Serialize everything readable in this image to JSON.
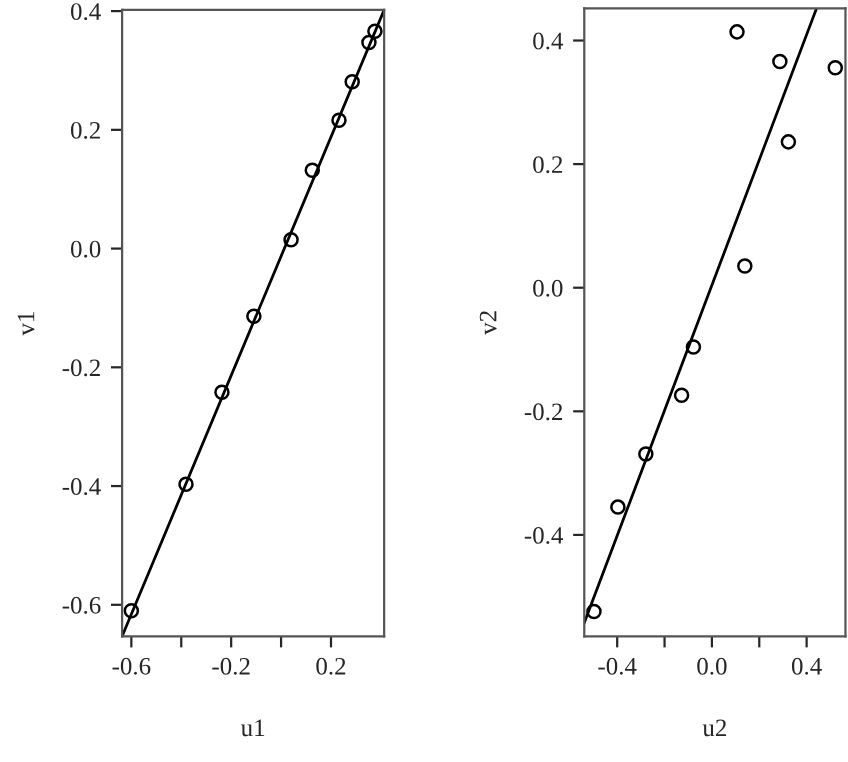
{
  "chart_data": [
    {
      "type": "scatter",
      "xlabel": "u1",
      "ylabel": "v1",
      "grid": false,
      "legend": false,
      "xlim": [
        -0.637,
        0.413
      ],
      "ylim": [
        -0.653,
        0.402
      ],
      "xticks": [
        -0.6,
        {
          "value": -0.4,
          "label": null
        },
        -0.2,
        {
          "value": 0.0,
          "label": null
        },
        0.2
      ],
      "yticks": [
        -0.6,
        -0.4,
        -0.2,
        {
          "value": 0.0,
          "label": "0.0"
        },
        0.2,
        0.4
      ],
      "series": [
        {
          "marker": "circle",
          "color": "#000000",
          "x": [
            -0.6,
            -0.381,
            -0.237,
            -0.109,
            0.04,
            0.125,
            0.232,
            0.285,
            0.352,
            0.376
          ],
          "values": [
            -0.61,
            -0.397,
            -0.242,
            -0.114,
            0.015,
            0.132,
            0.216,
            0.281,
            0.347,
            0.366
          ]
        },
        {
          "type": "line",
          "color": "#000000",
          "x": [
            -0.637,
            0.413
          ],
          "values": [
            -0.653,
            0.402
          ]
        }
      ]
    },
    {
      "type": "scatter",
      "xlabel": "u2",
      "ylabel": "v2",
      "grid": false,
      "legend": false,
      "xlim": [
        -0.539,
        0.564
      ],
      "ylim": [
        -0.564,
        0.452
      ],
      "xticks": [
        -0.4,
        {
          "value": -0.2,
          "label": null
        },
        {
          "value": 0.0,
          "label": "0.0"
        },
        {
          "value": 0.2,
          "label": null
        },
        0.4
      ],
      "yticks": [
        -0.4,
        -0.2,
        {
          "value": 0.0,
          "label": "0.0"
        },
        0.2,
        0.4
      ],
      "series": [
        {
          "marker": "circle",
          "color": "#000000",
          "x": [
            -0.498,
            -0.397,
            -0.279,
            -0.128,
            -0.078,
            0.139,
            0.106,
            0.287,
            0.323,
            0.521
          ],
          "values": [
            -0.524,
            -0.355,
            -0.269,
            -0.174,
            -0.096,
            0.035,
            0.414,
            0.366,
            0.236,
            0.356
          ]
        },
        {
          "type": "line",
          "color": "#000000",
          "x": [
            -0.539,
            0.442
          ],
          "values": [
            -0.542,
            0.452
          ]
        }
      ]
    }
  ]
}
